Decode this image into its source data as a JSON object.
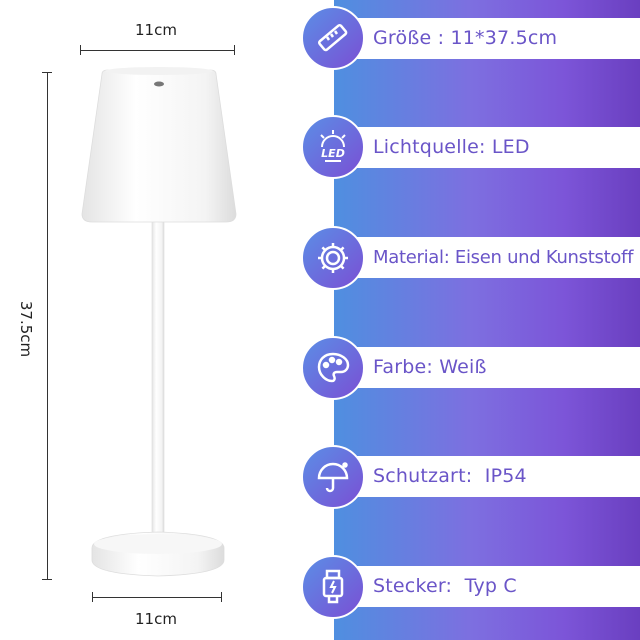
{
  "dimensions": {
    "width_top": "11cm",
    "width_bottom": "11cm",
    "height": "37.5cm"
  },
  "specs": [
    {
      "icon": "ruler-icon",
      "label": "Größe : 11*37.5cm"
    },
    {
      "icon": "led-icon",
      "label": "Lichtquelle: LED"
    },
    {
      "icon": "gear-icon",
      "label": "Material: Eisen und Kunststoff"
    },
    {
      "icon": "palette-icon",
      "label": "Farbe: Weiß"
    },
    {
      "icon": "umbrella-icon",
      "label": "Schutzart:  IP54"
    },
    {
      "icon": "usb-c-icon",
      "label": "Stecker:  Typ C"
    }
  ],
  "colors": {
    "text": "#6a55c8",
    "gradient_start": "#4f8fe0",
    "gradient_end": "#6a3fc0"
  }
}
